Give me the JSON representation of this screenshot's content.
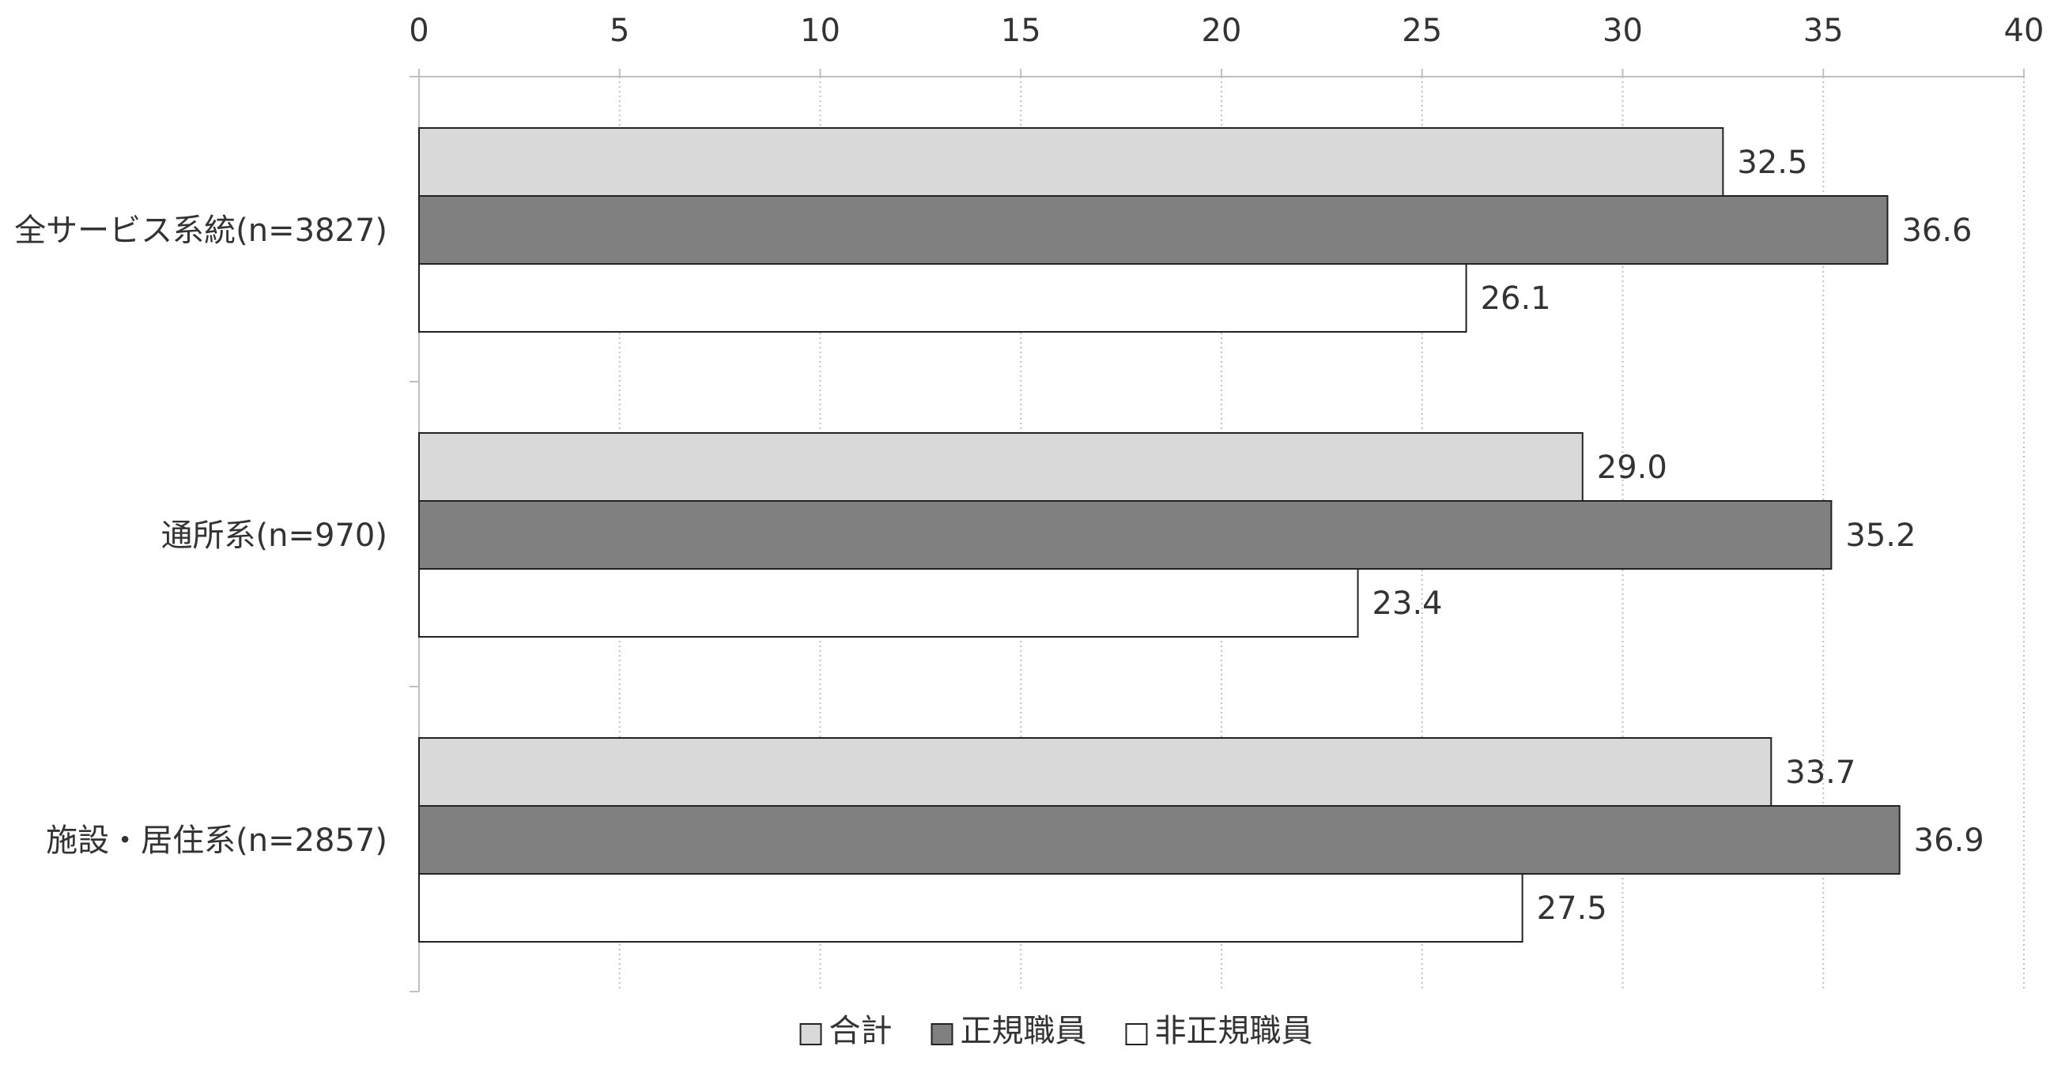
{
  "chart_data": {
    "type": "bar",
    "orientation": "horizontal",
    "categories": [
      "全サービス系統(n=3827)",
      "通所系(n=970)",
      "施設・居住系(n=2857)"
    ],
    "series": [
      {
        "name": "合計",
        "values": [
          32.5,
          29.0,
          33.7
        ],
        "color": "#d9d9d9"
      },
      {
        "name": "正規職員",
        "values": [
          36.6,
          35.2,
          36.9
        ],
        "color": "#808080"
      },
      {
        "name": "非正規職員",
        "values": [
          26.1,
          23.4,
          27.5
        ],
        "color": "#ffffff"
      }
    ],
    "value_labels": [
      [
        "32.5",
        "29.0",
        "33.7"
      ],
      [
        "36.6",
        "35.2",
        "36.9"
      ],
      [
        "26.1",
        "23.4",
        "27.5"
      ]
    ],
    "xlim": [
      0,
      40
    ],
    "xticks": [
      0,
      5,
      10,
      15,
      20,
      25,
      30,
      35,
      40
    ],
    "xtick_labels": [
      "0",
      "5",
      "10",
      "15",
      "20",
      "25",
      "30",
      "35",
      "40"
    ],
    "x_axis_position": "top",
    "grid": "vertical-dotted",
    "legend_placement": "bottom-center",
    "title": "",
    "xlabel": "",
    "ylabel": ""
  }
}
